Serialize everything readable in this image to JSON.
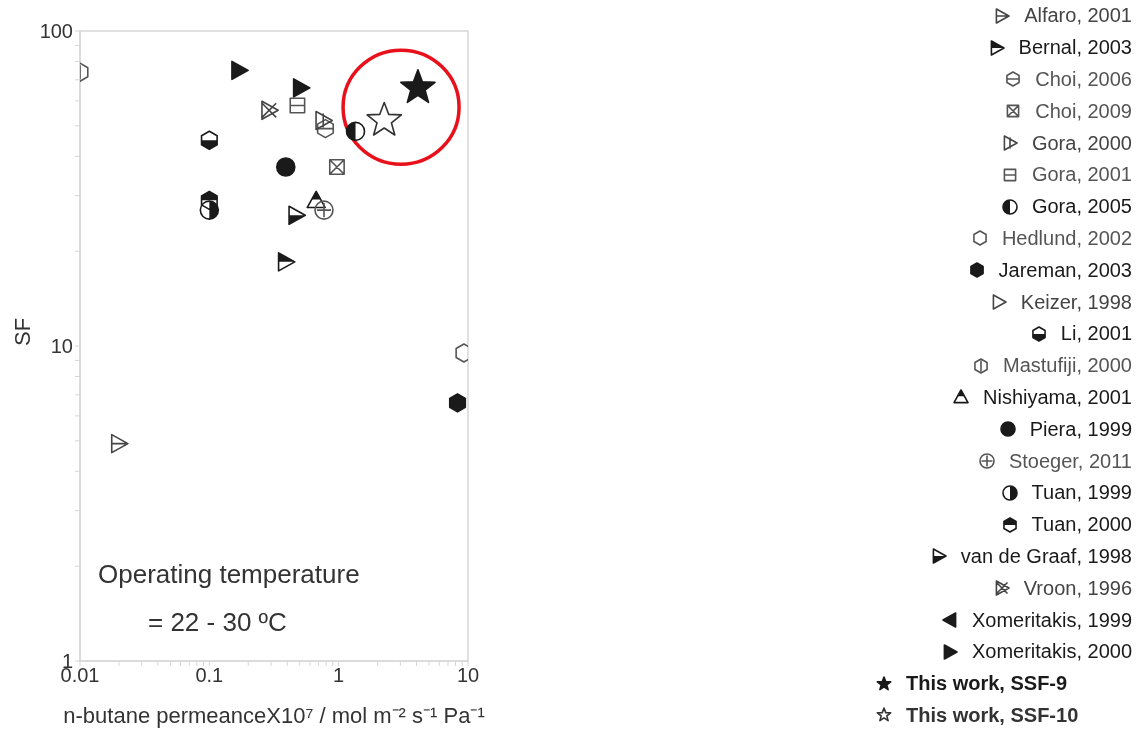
{
  "chart_data": {
    "type": "scatter",
    "xlabel": "n-butane permeanceX10⁷  /   mol m⁻² s⁻¹ Pa⁻¹",
    "ylabel": "SF",
    "log": "xy",
    "grid": false,
    "legend": "right",
    "xlim": [
      0.01,
      10
    ],
    "xticks": [
      0.01,
      {
        "value": 0.02,
        "label": null
      },
      {
        "value": 0.03,
        "label": null
      },
      {
        "value": 0.04,
        "label": null
      },
      {
        "value": 0.05,
        "label": null
      },
      {
        "value": 0.06,
        "label": null
      },
      {
        "value": 0.07,
        "label": null
      },
      {
        "value": 0.08,
        "label": null
      },
      {
        "value": 0.09,
        "label": null
      },
      0.1,
      {
        "value": 0.2,
        "label": null
      },
      {
        "value": 0.3,
        "label": null
      },
      {
        "value": 0.4,
        "label": null
      },
      {
        "value": 0.5,
        "label": null
      },
      {
        "value": 0.6,
        "label": null
      },
      {
        "value": 0.7,
        "label": null
      },
      {
        "value": 0.8,
        "label": null
      },
      {
        "value": 0.9,
        "label": null
      },
      1,
      {
        "value": 2,
        "label": null
      },
      {
        "value": 3,
        "label": null
      },
      {
        "value": 4,
        "label": null
      },
      {
        "value": 5,
        "label": null
      },
      {
        "value": 6,
        "label": null
      },
      {
        "value": 7,
        "label": null
      },
      {
        "value": 8,
        "label": null
      },
      {
        "value": 9,
        "label": null
      },
      10
    ],
    "ylim": [
      1,
      100
    ],
    "yticks": [
      1,
      {
        "value": 2,
        "label": null
      },
      {
        "value": 3,
        "label": null
      },
      {
        "value": 4,
        "label": null
      },
      {
        "value": 5,
        "label": null
      },
      {
        "value": 6,
        "label": null
      },
      {
        "value": 7,
        "label": null
      },
      {
        "value": 8,
        "label": null
      },
      {
        "value": 9,
        "label": null
      },
      10,
      {
        "value": 20,
        "label": null
      },
      {
        "value": 30,
        "label": null
      },
      {
        "value": 40,
        "label": null
      },
      {
        "value": 50,
        "label": null
      },
      {
        "value": 60,
        "label": null
      },
      {
        "value": 70,
        "label": null
      },
      {
        "value": 80,
        "label": null
      },
      {
        "value": 90,
        "label": null
      },
      100
    ],
    "annotations": [
      "Operating temperature",
      "= 22 - 30 ºC"
    ],
    "series": [
      {
        "name": "Alfaro, 2001",
        "color": "#444444",
        "x": [
          0.02
        ],
        "values": [
          4.9
        ]
      },
      {
        "name": "Bernal, 2003",
        "color": "#1a1a1a",
        "marker": "triangle",
        "x": [
          0.39
        ],
        "values": [
          18.5
        ]
      },
      {
        "name": "Choi, 2006",
        "color": "#555555",
        "x": [
          0.79
        ],
        "values": [
          49
        ]
      },
      {
        "name": "Choi, 2009",
        "color": "#555555",
        "x": [
          0.97
        ],
        "values": [
          37
        ]
      },
      {
        "name": "Gora, 2000",
        "color": "#444444",
        "x": [
          0.76
        ],
        "values": [
          52
        ]
      },
      {
        "name": "Gora, 2001",
        "color": "#555555",
        "x": [
          0.48
        ],
        "values": [
          58
        ]
      },
      {
        "name": "Gora, 2005",
        "color": "#1a1a1a",
        "marker": "circle",
        "x": [
          1.35
        ],
        "values": [
          48
        ]
      },
      {
        "name": "Hedlund, 2002",
        "color": "#555555",
        "marker": "circle",
        "x": [
          9.3
        ],
        "values": [
          9.5
        ]
      },
      {
        "name": "Jareman, 2003",
        "color": "#1a1a1a",
        "marker": "circle",
        "x": [
          8.3
        ],
        "values": [
          6.6
        ]
      },
      {
        "name": "Keizer, 1998",
        "color": "#444444",
        "marker": "triangle"
      },
      {
        "name": "Li, 2001",
        "color": "#1a1a1a",
        "marker": "circle",
        "x": [
          0.1
        ],
        "values": [
          45
        ]
      },
      {
        "name": "Mastufiji, 2000",
        "color": "#555555",
        "x": [
          0.01
        ],
        "values": [
          74
        ]
      },
      {
        "name": "Nishiyama, 2001",
        "color": "#1a1a1a",
        "marker": "triangle",
        "x": [
          0.67
        ],
        "values": [
          29
        ]
      },
      {
        "name": "Piera, 1999",
        "color": "#1a1a1a",
        "marker": "circle",
        "x": [
          0.39
        ],
        "values": [
          37
        ]
      },
      {
        "name": "Stoeger, 2011",
        "color": "#555555",
        "x": [
          0.77
        ],
        "values": [
          27
        ]
      },
      {
        "name": "Tuan, 1999",
        "color": "#1a1a1a",
        "marker": "circle",
        "x": [
          0.1
        ],
        "values": [
          27
        ]
      },
      {
        "name": "Tuan, 2000",
        "color": "#1a1a1a",
        "marker": "circle",
        "x": [
          0.1
        ],
        "values": [
          29
        ]
      },
      {
        "name": "van de Graaf, 1998",
        "color": "#1a1a1a",
        "marker": "triangle",
        "x": [
          0.47
        ],
        "values": [
          26
        ]
      },
      {
        "name": "Vroon, 1996",
        "color": "#444444",
        "marker": "cross",
        "x": [
          0.29
        ],
        "values": [
          56
        ]
      },
      {
        "name": "Xomeritakis, 1999",
        "color": "#1a1a1a",
        "marker": "triangle"
      },
      {
        "name": "Xomeritakis, 2000",
        "color": "#1a1a1a",
        "marker": "triangle",
        "x": [
          0.17,
          0.51
        ],
        "values": [
          75,
          66
        ]
      },
      {
        "name": "This work, SSF-9",
        "color": "#1a1a1a",
        "marker": "star",
        "x": [
          4.1
        ],
        "values": [
          66
        ]
      },
      {
        "name": "This work, SSF-10",
        "color": "#333333",
        "marker": "star",
        "x": [
          2.25
        ],
        "values": [
          52
        ]
      }
    ]
  }
}
